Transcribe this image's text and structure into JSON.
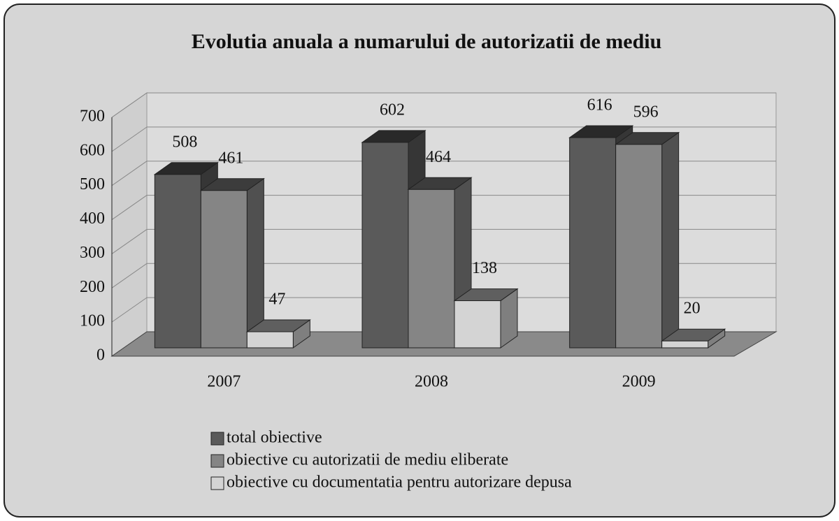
{
  "chart_data": {
    "type": "bar3d",
    "title": "Evolutia anuala a numarului de autorizatii de mediu",
    "categories": [
      "2007",
      "2008",
      "2009"
    ],
    "series": [
      {
        "name": "total obiective",
        "color": "#5a5a5a",
        "values": [
          508,
          602,
          616
        ]
      },
      {
        "name": "obiective cu autorizatii de mediu eliberate",
        "color": "#858585",
        "values": [
          461,
          464,
          596
        ]
      },
      {
        "name": "obiective cu documentatia pentru autorizare depusa",
        "color": "#d4d4d4",
        "values": [
          47,
          138,
          20
        ]
      }
    ],
    "ylim": [
      0,
      700
    ],
    "yticks": [
      0,
      100,
      200,
      300,
      400,
      500,
      600,
      700
    ],
    "grid": true,
    "legend": "bottom"
  }
}
